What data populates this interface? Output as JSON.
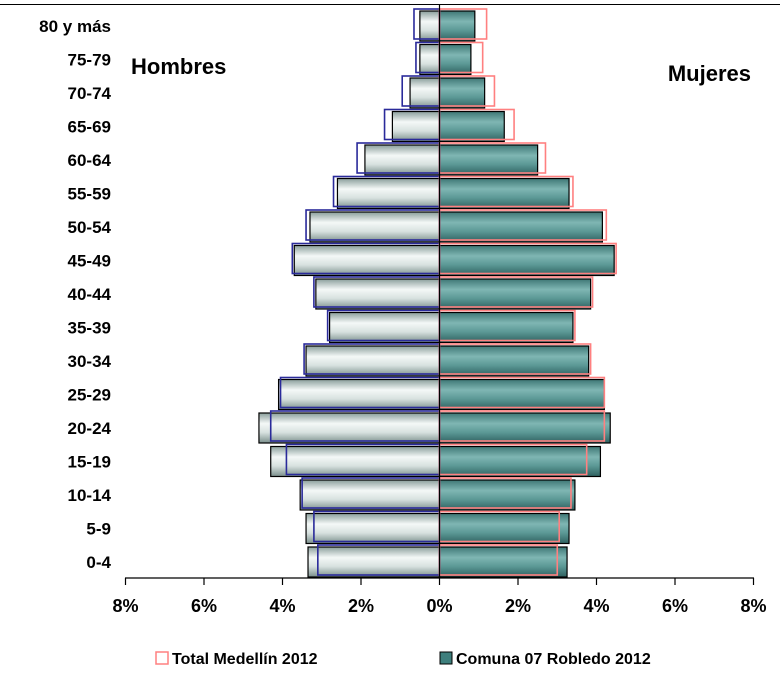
{
  "chart_data": {
    "type": "bar",
    "orientation": "horizontal",
    "subtype": "population-pyramid",
    "categories": [
      "80 y más",
      "75-79",
      "70-74",
      "65-69",
      "60-64",
      "55-59",
      "50-54",
      "45-49",
      "40-44",
      "35-39",
      "30-34",
      "25-29",
      "20-24",
      "15-19",
      "10-14",
      "5-9",
      "0-4"
    ],
    "side_labels": {
      "left": "Hombres",
      "right": "Mujeres"
    },
    "series": [
      {
        "name": "Comuna 07 Robledo 2012",
        "color": "#5f9ea0",
        "hombres": [
          0.5,
          0.5,
          0.75,
          1.2,
          1.9,
          2.6,
          3.3,
          3.7,
          3.15,
          2.8,
          3.4,
          4.1,
          4.6,
          4.3,
          3.55,
          3.4,
          3.35
        ],
        "mujeres": [
          0.9,
          0.8,
          1.15,
          1.65,
          2.5,
          3.3,
          4.15,
          4.45,
          3.85,
          3.4,
          3.8,
          4.2,
          4.35,
          4.1,
          3.45,
          3.3,
          3.25
        ]
      },
      {
        "name": "Total Medellín 2012",
        "color": "#ff8080",
        "hombres": [
          0.65,
          0.6,
          0.95,
          1.4,
          2.1,
          2.7,
          3.4,
          3.75,
          3.2,
          2.85,
          3.45,
          4.05,
          4.3,
          3.9,
          3.5,
          3.2,
          3.1
        ],
        "mujeres": [
          1.2,
          1.1,
          1.4,
          1.9,
          2.7,
          3.4,
          4.25,
          4.5,
          3.9,
          3.45,
          3.85,
          4.2,
          4.2,
          3.75,
          3.35,
          3.05,
          3.0
        ]
      }
    ],
    "x_ticks": [
      "8%",
      "6%",
      "4%",
      "2%",
      "0%",
      "2%",
      "4%",
      "6%",
      "8%"
    ],
    "xlim": [
      -8,
      8
    ],
    "grid": false,
    "legend_position": "bottom"
  }
}
